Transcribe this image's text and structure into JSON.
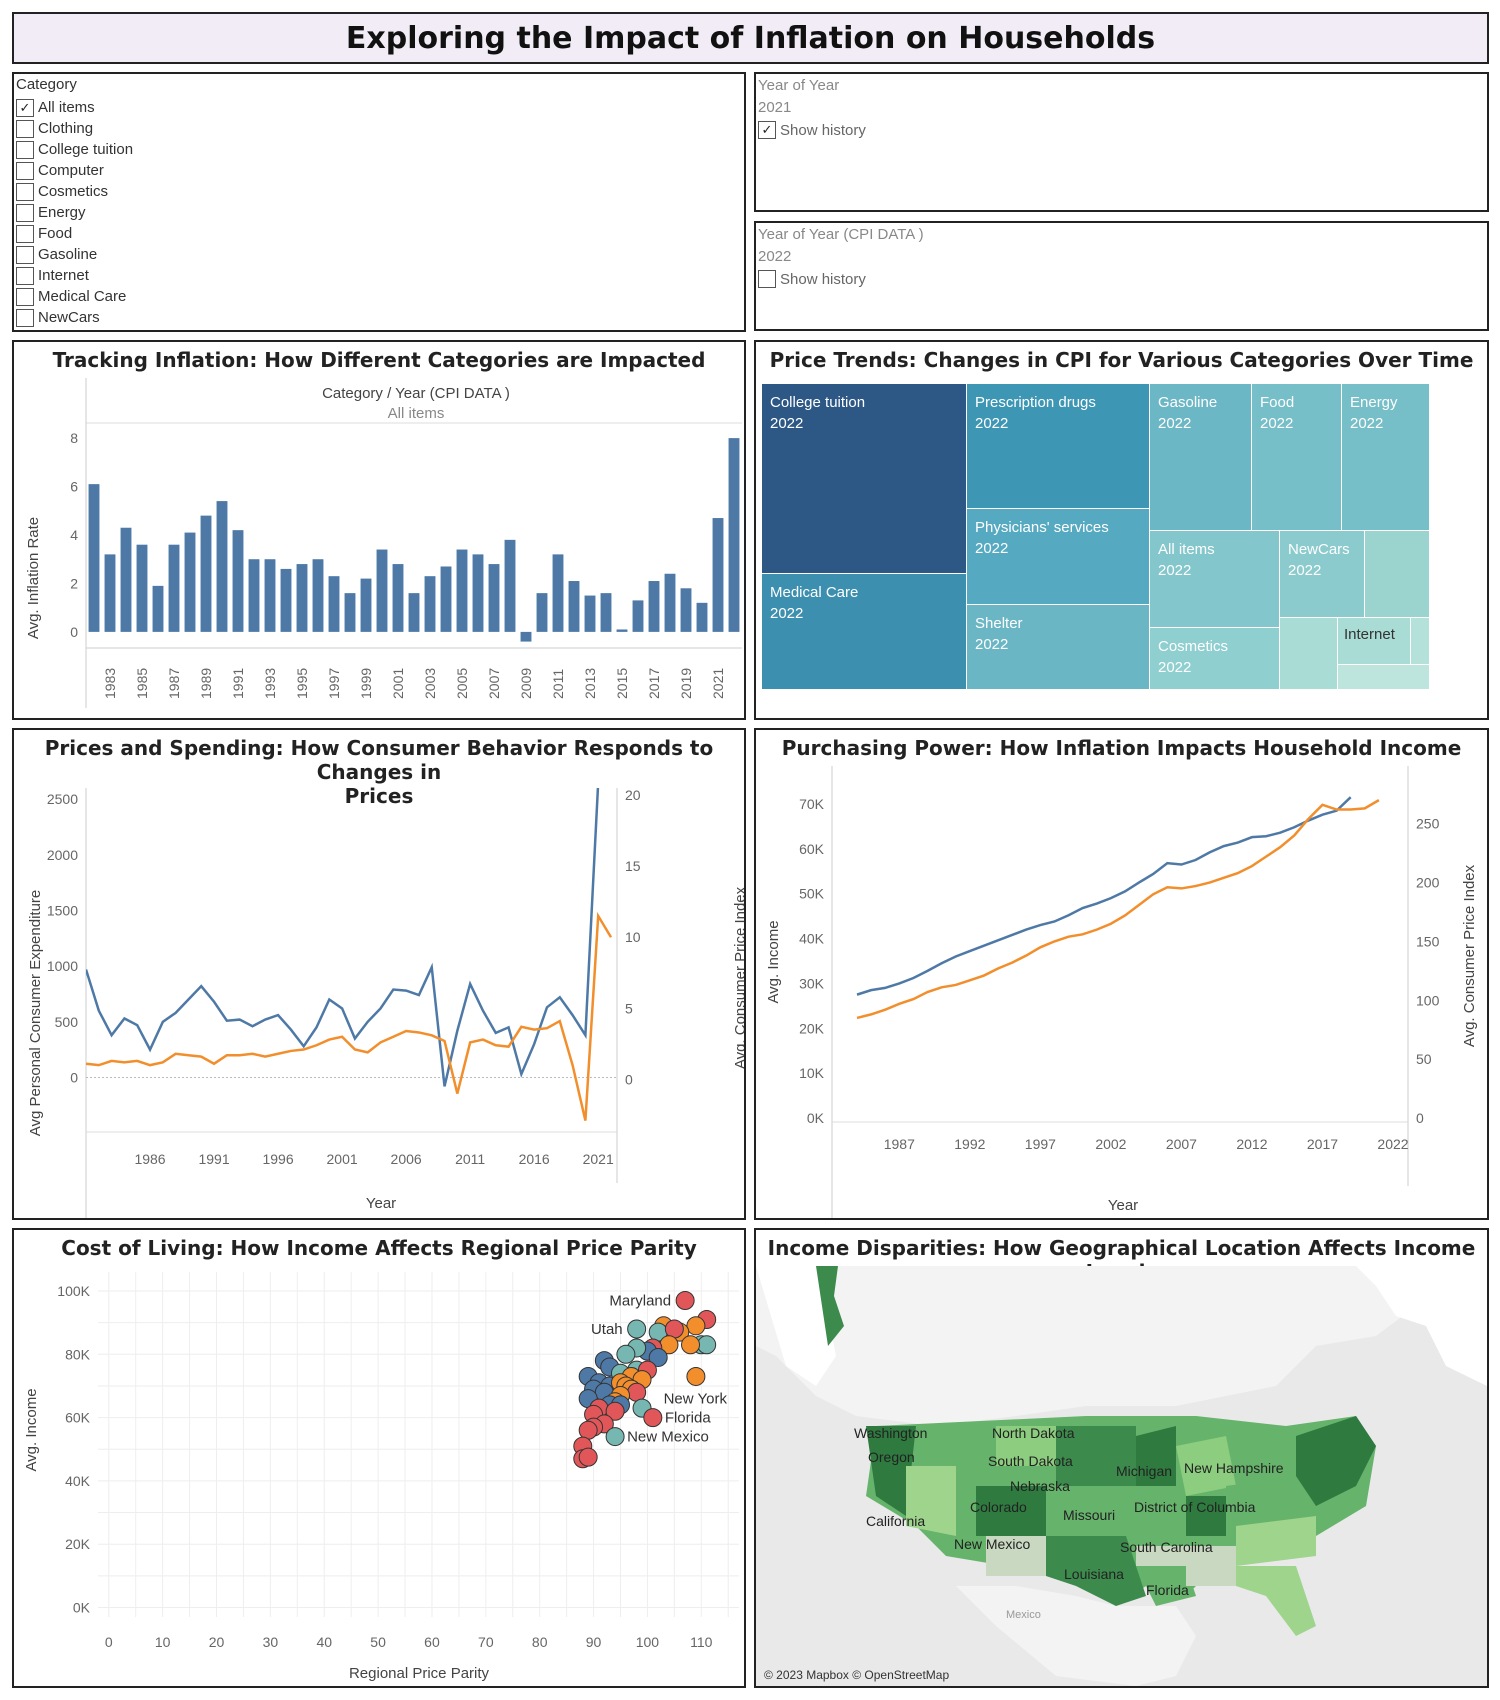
{
  "header": {
    "title": "Exploring the Impact of Inflation on Households"
  },
  "category_filter": {
    "label": "Category",
    "items": [
      {
        "label": "All items",
        "checked": "✓"
      },
      {
        "label": "Clothing",
        "checked": ""
      },
      {
        "label": "College tuition",
        "checked": ""
      },
      {
        "label": "Computer",
        "checked": ""
      },
      {
        "label": "Cosmetics",
        "checked": ""
      },
      {
        "label": "Energy",
        "checked": ""
      },
      {
        "label": "Food",
        "checked": ""
      },
      {
        "label": "Gasoline",
        "checked": ""
      },
      {
        "label": "Internet",
        "checked": ""
      },
      {
        "label": "Medical Care",
        "checked": ""
      },
      {
        "label": "NewCars",
        "checked": ""
      }
    ]
  },
  "year_filter": {
    "label": "Year of Year",
    "value": "2021",
    "history_label": "Show history",
    "history_checked": "✓"
  },
  "cpi_year_filter": {
    "label": "Year of Year (CPI DATA )",
    "value": "2022",
    "history_label": "Show history",
    "history_checked": ""
  },
  "panels": {
    "inflation": {
      "title": "Tracking Inflation: How Different Categories are Impacted",
      "header_line1": "Category  /  Year (CPI DATA )",
      "header_line2": "All items",
      "ylabel": "Avg. Inflation Rate"
    },
    "treemap": {
      "title": "Price Trends: Changes in CPI for Various Categories Over Time",
      "cells": [
        {
          "name": "College tuition",
          "year": "2022"
        },
        {
          "name": "Medical Care",
          "year": "2022"
        },
        {
          "name": "Prescription drugs",
          "year": "2022"
        },
        {
          "name": "Physicians' services",
          "year": "2022"
        },
        {
          "name": "Shelter",
          "year": "2022"
        },
        {
          "name": "Gasoline",
          "year": "2022"
        },
        {
          "name": "Food",
          "year": "2022"
        },
        {
          "name": "Energy",
          "year": "2022"
        },
        {
          "name": "All items",
          "year": "2022"
        },
        {
          "name": "NewCars",
          "year": "2022"
        },
        {
          "name": "Cosmetics",
          "year": "2022"
        },
        {
          "name": "Internet",
          "year": ""
        }
      ]
    },
    "spending": {
      "title_line1": "Prices and Spending: How Consumer Behavior Responds to Changes in",
      "title_line2": "Prices",
      "ylabel_left": "Avg Personal Consumer Expenditure",
      "ylabel_right": "Avg. Consumer Price Index",
      "xlabel": "Year"
    },
    "purchasing": {
      "title": "Purchasing Power: How Inflation Impacts Household Income",
      "ylabel_left": "Avg. Income",
      "ylabel_right": "Avg. Consumer Price Index",
      "xlabel": "Year"
    },
    "cost_living": {
      "title": "Cost of Living: How Income Affects Regional Price Parity",
      "ylabel": "Avg. Income",
      "xlabel": "Regional Price Parity"
    },
    "income_map": {
      "title": "Income Disparities: How Geographical Location Affects Income Levels",
      "attribution": "© 2023 Mapbox © OpenStreetMap",
      "country_label": "Mexico",
      "state_labels": [
        "Washington",
        "Oregon",
        "California",
        "North Dakota",
        "South Dakota",
        "Nebraska",
        "Colorado",
        "New Mexico",
        "Missouri",
        "Michigan",
        "New Hampshire",
        "District of Columbia",
        "South Carolina",
        "Louisiana",
        "Florida"
      ]
    }
  },
  "colors": {
    "blue": "#4e79a7",
    "orange": "#f28e2b",
    "red": "#e15759",
    "teal": "#76b7b2"
  },
  "chart_data": [
    {
      "type": "bar",
      "title": "Tracking Inflation: How Different Categories are Impacted",
      "ylabel": "Avg. Inflation Rate",
      "categories": [
        "1982",
        "1983",
        "1984",
        "1985",
        "1986",
        "1987",
        "1988",
        "1989",
        "1990",
        "1991",
        "1992",
        "1993",
        "1994",
        "1995",
        "1996",
        "1997",
        "1998",
        "1999",
        "2000",
        "2001",
        "2002",
        "2003",
        "2004",
        "2005",
        "2006",
        "2007",
        "2008",
        "2009",
        "2010",
        "2011",
        "2012",
        "2013",
        "2014",
        "2015",
        "2016",
        "2017",
        "2018",
        "2019",
        "2020",
        "2021",
        "2022"
      ],
      "tick_labels": [
        "1983",
        "1985",
        "1987",
        "1989",
        "1991",
        "1993",
        "1995",
        "1997",
        "1999",
        "2001",
        "2003",
        "2005",
        "2007",
        "2009",
        "2011",
        "2013",
        "2015",
        "2017",
        "2019",
        "2021"
      ],
      "values": [
        6.1,
        3.2,
        4.3,
        3.6,
        1.9,
        3.6,
        4.1,
        4.8,
        5.4,
        4.2,
        3.0,
        3.0,
        2.6,
        2.8,
        3.0,
        2.3,
        1.6,
        2.2,
        3.4,
        2.8,
        1.6,
        2.3,
        2.7,
        3.4,
        3.2,
        2.8,
        3.8,
        -0.4,
        1.6,
        3.2,
        2.1,
        1.5,
        1.6,
        0.1,
        1.3,
        2.1,
        2.4,
        1.8,
        1.2,
        4.7,
        8.0
      ],
      "ylim": [
        -0.5,
        8.5
      ],
      "yticks": [
        0,
        2,
        4,
        6,
        8
      ]
    },
    {
      "type": "treemap",
      "title": "Price Trends: Changes in CPI for Various Categories Over Time",
      "categories": [
        "College tuition",
        "Medical Care",
        "Prescription drugs",
        "Physicians' services",
        "Shelter",
        "Gasoline",
        "Food",
        "Energy",
        "All items",
        "NewCars",
        "Cosmetics",
        "Internet"
      ]
    },
    {
      "type": "line",
      "title": "Prices and Spending: How Consumer Behavior Responds to Changes in Prices",
      "x": [
        1981,
        1982,
        1983,
        1984,
        1985,
        1986,
        1987,
        1988,
        1989,
        1990,
        1991,
        1992,
        1993,
        1994,
        1995,
        1996,
        1997,
        1998,
        1999,
        2000,
        2001,
        2002,
        2003,
        2004,
        2005,
        2006,
        2007,
        2008,
        2009,
        2010,
        2011,
        2012,
        2013,
        2014,
        2015,
        2016,
        2017,
        2018,
        2019,
        2020,
        2021,
        2022
      ],
      "xticks": [
        1986,
        1991,
        1996,
        2001,
        2006,
        2011,
        2016,
        2021
      ],
      "series": [
        {
          "axis": "left",
          "values": [
            970,
            600,
            380,
            530,
            470,
            250,
            500,
            580,
            700,
            820,
            680,
            510,
            520,
            460,
            520,
            560,
            430,
            280,
            450,
            700,
            620,
            350,
            500,
            620,
            790,
            780,
            740,
            990,
            -80,
            420,
            840,
            600,
            400,
            450,
            30,
            300,
            630,
            720,
            560,
            380,
            2650,
            2650
          ]
        },
        {
          "axis": "right",
          "values": [
            1.1,
            1.0,
            1.3,
            1.2,
            1.3,
            1.0,
            1.2,
            1.8,
            1.7,
            1.6,
            1.1,
            1.7,
            1.7,
            1.8,
            1.6,
            1.8,
            2.0,
            2.1,
            2.4,
            2.8,
            3.0,
            2.1,
            1.9,
            2.6,
            3.0,
            3.4,
            3.3,
            3.1,
            2.7,
            -1.0,
            2.6,
            2.8,
            2.4,
            2.3,
            3.7,
            3.5,
            3.6,
            4.1,
            1.0,
            -2.9,
            11.5,
            10.0
          ]
        }
      ],
      "ylim_left": [
        -400,
        2600
      ],
      "yticks_left": [
        0,
        500,
        1000,
        1500,
        2000,
        2500
      ],
      "ylim_right": [
        -3,
        20.5
      ],
      "yticks_right": [
        0,
        5,
        10,
        15,
        20
      ],
      "ylabel_left": "Avg Personal Consumer Expenditure",
      "ylabel_right": "Avg. Consumer Price Index",
      "xlabel": "Year"
    },
    {
      "type": "line",
      "title": "Purchasing Power: How Inflation Impacts Household Income",
      "x": [
        1984,
        1985,
        1986,
        1987,
        1988,
        1989,
        1990,
        1991,
        1992,
        1993,
        1994,
        1995,
        1996,
        1997,
        1998,
        1999,
        2000,
        2001,
        2002,
        2003,
        2004,
        2005,
        2006,
        2007,
        2008,
        2009,
        2010,
        2011,
        2012,
        2013,
        2014,
        2015,
        2016,
        2017,
        2018,
        2019,
        2020,
        2021,
        2022
      ],
      "xticks": [
        1987,
        1992,
        1997,
        2002,
        2007,
        2012,
        2017,
        2022
      ],
      "series": [
        {
          "axis": "left",
          "values": [
            27500,
            28500,
            29000,
            30000,
            31200,
            32800,
            34500,
            36000,
            37200,
            38400,
            39600,
            40800,
            42000,
            43000,
            43800,
            45200,
            46800,
            47800,
            49000,
            50500,
            52500,
            54400,
            56800,
            56500,
            57500,
            59200,
            60600,
            61400,
            62600,
            62800,
            63600,
            64800,
            66300,
            67600,
            68500,
            71500,
            null,
            null,
            null
          ]
        },
        {
          "axis": "right",
          "values": [
            85,
            88,
            92,
            97,
            101,
            107,
            111,
            113,
            117,
            121,
            127,
            132,
            138,
            145,
            150,
            154,
            156,
            160,
            165,
            172,
            181,
            190,
            196,
            195,
            197,
            200,
            204,
            208,
            214,
            222,
            230,
            240,
            254,
            266,
            262,
            262,
            263,
            270,
            null
          ]
        }
      ],
      "ylim_left": [
        0,
        74000
      ],
      "yticks_left": [
        0,
        10000,
        20000,
        30000,
        40000,
        50000,
        60000,
        70000
      ],
      "ytick_labels_left": [
        "0K",
        "10K",
        "20K",
        "30K",
        "40K",
        "50K",
        "60K",
        "70K"
      ],
      "ylim_right": [
        0,
        282
      ],
      "yticks_right": [
        0,
        50,
        100,
        150,
        200,
        250
      ],
      "ylabel_left": "Avg. Income",
      "ylabel_right": "Avg. Consumer Price Index",
      "xlabel": "Year"
    },
    {
      "type": "scatter",
      "title": "Cost of Living: How Income Affects Regional Price Parity",
      "xlabel": "Regional Price Parity",
      "ylabel": "Avg. Income",
      "xlim": [
        -2,
        117
      ],
      "xticks": [
        0,
        10,
        20,
        30,
        40,
        50,
        60,
        70,
        80,
        90,
        100,
        110
      ],
      "ylim": [
        -3000,
        106000
      ],
      "yticks": [
        0,
        20000,
        40000,
        60000,
        80000,
        100000
      ],
      "ytick_labels": [
        "0K",
        "20K",
        "40K",
        "60K",
        "80K",
        "100K"
      ],
      "points": [
        {
          "x": 107,
          "y": 97000,
          "c": "red",
          "label": "Maryland"
        },
        {
          "x": 98,
          "y": 88000,
          "c": "teal",
          "label": "Utah"
        },
        {
          "x": 111,
          "y": 91000,
          "c": "red"
        },
        {
          "x": 109,
          "y": 89000,
          "c": "orange"
        },
        {
          "x": 103,
          "y": 89000,
          "c": "orange"
        },
        {
          "x": 106,
          "y": 87000,
          "c": "orange"
        },
        {
          "x": 102,
          "y": 87000,
          "c": "teal"
        },
        {
          "x": 105,
          "y": 88000,
          "c": "red"
        },
        {
          "x": 110,
          "y": 83000,
          "c": "teal"
        },
        {
          "x": 111,
          "y": 83000,
          "c": "teal"
        },
        {
          "x": 108,
          "y": 83000,
          "c": "orange"
        },
        {
          "x": 104,
          "y": 83000,
          "c": "orange"
        },
        {
          "x": 101,
          "y": 82000,
          "c": "red"
        },
        {
          "x": 100,
          "y": 81000,
          "c": "blue"
        },
        {
          "x": 98,
          "y": 82000,
          "c": "teal"
        },
        {
          "x": 96,
          "y": 80000,
          "c": "teal"
        },
        {
          "x": 102,
          "y": 79000,
          "c": "blue"
        },
        {
          "x": 92,
          "y": 78000,
          "c": "blue"
        },
        {
          "x": 93,
          "y": 76000,
          "c": "blue"
        },
        {
          "x": 89,
          "y": 73000,
          "c": "blue"
        },
        {
          "x": 95,
          "y": 74000,
          "c": "teal"
        },
        {
          "x": 98,
          "y": 75000,
          "c": "teal"
        },
        {
          "x": 100,
          "y": 75000,
          "c": "red"
        },
        {
          "x": 97,
          "y": 73000,
          "c": "orange"
        },
        {
          "x": 99,
          "y": 72000,
          "c": "orange"
        },
        {
          "x": 109,
          "y": 73000,
          "c": "orange"
        },
        {
          "x": 91,
          "y": 71000,
          "c": "blue"
        },
        {
          "x": 93,
          "y": 70000,
          "c": "blue"
        },
        {
          "x": 95,
          "y": 71000,
          "c": "orange"
        },
        {
          "x": 96,
          "y": 70000,
          "c": "orange"
        },
        {
          "x": 90,
          "y": 69000,
          "c": "blue"
        },
        {
          "x": 92,
          "y": 68000,
          "c": "blue"
        },
        {
          "x": 97,
          "y": 69000,
          "c": "orange"
        },
        {
          "x": 98,
          "y": 68000,
          "c": "red"
        },
        {
          "x": 95,
          "y": 67000,
          "c": "orange"
        },
        {
          "x": 94,
          "y": 65000,
          "c": "orange"
        },
        {
          "x": 89,
          "y": 66000,
          "c": "blue"
        },
        {
          "x": 93,
          "y": 64000,
          "c": "blue"
        },
        {
          "x": 95,
          "y": 64000,
          "c": "blue"
        },
        {
          "x": 91,
          "y": 63000,
          "c": "red"
        },
        {
          "x": 94,
          "y": 62000,
          "c": "red"
        },
        {
          "x": 99,
          "y": 63000,
          "c": "teal"
        },
        {
          "x": 90,
          "y": 61000,
          "c": "red"
        },
        {
          "x": 101,
          "y": 60000,
          "c": "red",
          "label": "Florida"
        },
        {
          "x": 92,
          "y": 58000,
          "c": "red"
        },
        {
          "x": 90,
          "y": 57000,
          "c": "red"
        },
        {
          "x": 89,
          "y": 56000,
          "c": "red"
        },
        {
          "x": 94,
          "y": 54000,
          "c": "teal",
          "label": "New Mexico"
        },
        {
          "x": 88,
          "y": 51000,
          "c": "red"
        },
        {
          "x": 88,
          "y": 47000,
          "c": "red"
        },
        {
          "x": 89,
          "y": 47500,
          "c": "red"
        }
      ],
      "extra_label": {
        "text": "New York",
        "x": 103,
        "y": 66000
      }
    }
  ]
}
